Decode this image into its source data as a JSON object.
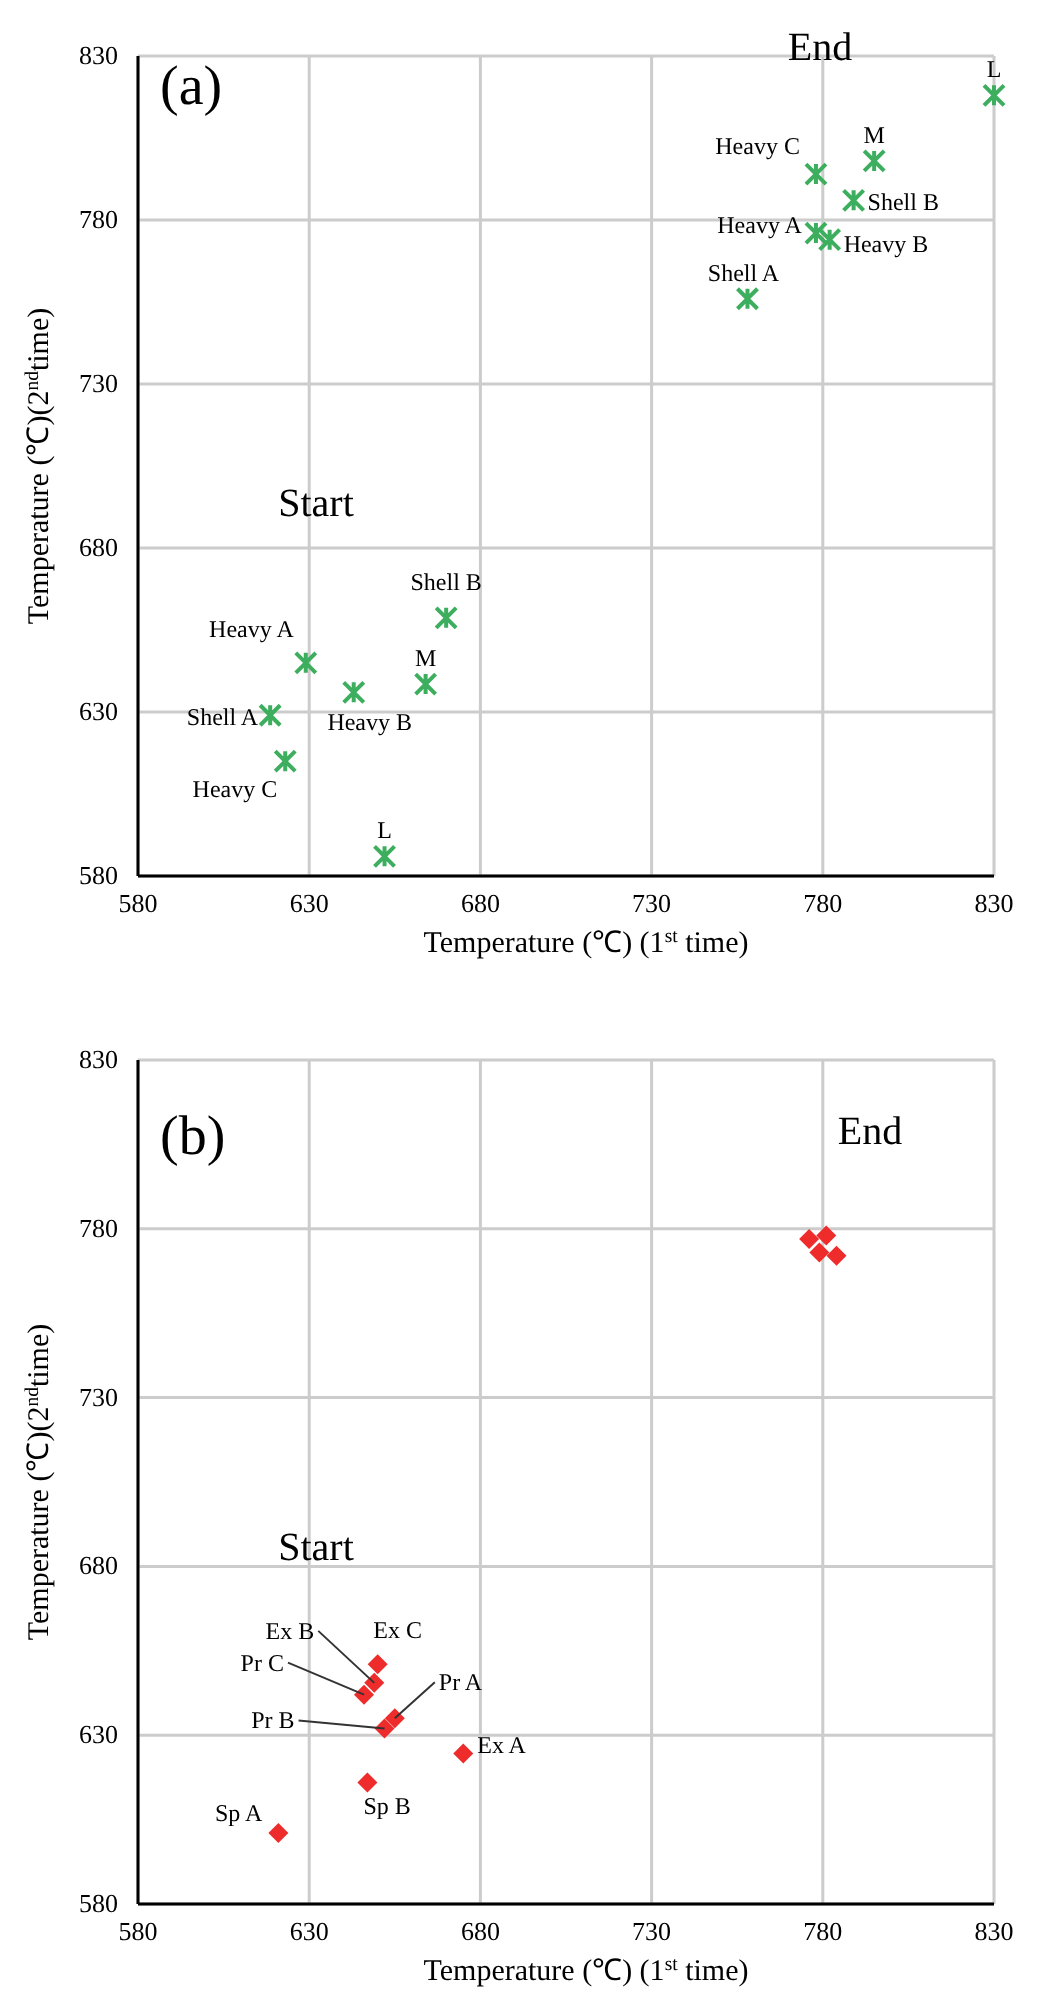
{
  "chart_data": [
    {
      "type": "scatter",
      "xlabel": "Temperature (℃) (1$^{st}$ time)",
      "ylabel": "Temperature (℃)(2$^{nd}$time)",
      "xlim": [
        580,
        830
      ],
      "ylim": [
        580,
        830
      ],
      "xticks": [
        580,
        630,
        680,
        730,
        780,
        830
      ],
      "yticks": [
        580,
        630,
        680,
        730,
        780,
        830
      ],
      "grid": true,
      "marker": "cross",
      "series": [
        {
          "color": "#3cae5e",
          "x": [
            830,
            795,
            778,
            789,
            778,
            782,
            758,
            670,
            629,
            643,
            664,
            618.6,
            623,
            652
          ],
          "values": [
            818,
            798,
            794,
            786,
            776,
            774,
            756,
            658.7,
            645,
            636,
            638.5,
            629,
            615,
            586
          ]
        }
      ],
      "annotations": [
        "(a)",
        "End",
        "Start",
        {
          "text": "L",
          "x": 830,
          "y": 818
        },
        {
          "text": "M",
          "x": 795,
          "y": 798
        },
        {
          "text": "Heavy C",
          "x": 778,
          "y": 794
        },
        {
          "text": "Shell B",
          "x": 789,
          "y": 786
        },
        {
          "text": "Heavy A",
          "x": 778,
          "y": 776
        },
        {
          "text": "Heavy B",
          "x": 782,
          "y": 774
        },
        {
          "text": "Shell A",
          "x": 758,
          "y": 756
        },
        {
          "text": "Shell B",
          "x": 670,
          "y": 658.7
        },
        {
          "text": "Heavy A",
          "x": 629,
          "y": 645
        },
        {
          "text": "Heavy B",
          "x": 643,
          "y": 636
        },
        {
          "text": "M",
          "x": 664,
          "y": 638.5
        },
        {
          "text": "Shell A",
          "x": 618.6,
          "y": 629
        },
        {
          "text": "Heavy C",
          "x": 623,
          "y": 615
        },
        {
          "text": "L",
          "x": 652,
          "y": 586
        }
      ]
    },
    {
      "type": "scatter",
      "xlabel": "Temperature (℃) (1$^{st}$ time)",
      "ylabel": "Temperature (℃)(2$^{nd}$time)",
      "xlim": [
        580,
        830
      ],
      "ylim": [
        580,
        830
      ],
      "xticks": [
        580,
        630,
        680,
        730,
        780,
        830
      ],
      "yticks": [
        580,
        630,
        680,
        730,
        780,
        830
      ],
      "grid": true,
      "marker": "diamond",
      "series": [
        {
          "color": "#ee2c2c",
          "x": [
            650,
            649,
            646,
            655,
            652,
            675,
            647,
            621,
            776,
            781,
            779,
            784
          ],
          "values": [
            651,
            645.5,
            642,
            635,
            632,
            624.6,
            616,
            601,
            777,
            778,
            773,
            772
          ]
        }
      ],
      "annotations": [
        "(b)",
        "End",
        "Start",
        {
          "text": "Ex C",
          "x": 650,
          "y": 651
        },
        {
          "text": "Ex B",
          "x": 649,
          "y": 645.5
        },
        {
          "text": "Pr C",
          "x": 646,
          "y": 642
        },
        {
          "text": "Pr A",
          "x": 655,
          "y": 635
        },
        {
          "text": "Pr B",
          "x": 652,
          "y": 632
        },
        {
          "text": "Ex A",
          "x": 675,
          "y": 624.6
        },
        {
          "text": "Sp B",
          "x": 647,
          "y": 616
        },
        {
          "text": "Sp A",
          "x": 621,
          "y": 601
        }
      ]
    }
  ]
}
